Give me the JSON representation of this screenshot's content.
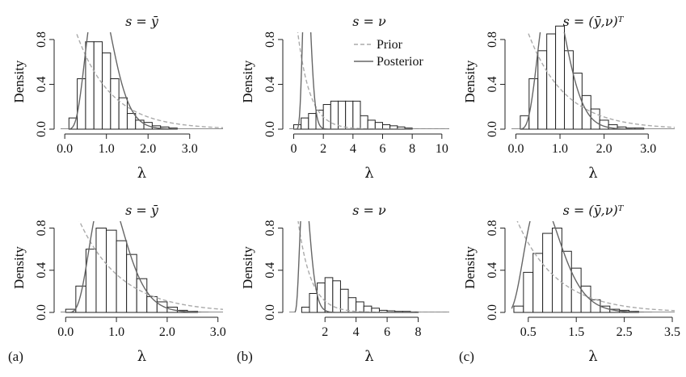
{
  "figure": {
    "panel_labels": [
      "(a)",
      "(b)",
      "(c)"
    ]
  },
  "chart_data": [
    {
      "type": "bar",
      "row": 0,
      "col": 0,
      "title": "s = ȳ",
      "xlabel": "λ",
      "ylabel": "Density",
      "xlim": [
        -0.1,
        3.8
      ],
      "ylim": [
        0,
        0.85
      ],
      "xticks": [
        0.0,
        1.0,
        2.0,
        3.0
      ],
      "xtick_labels": [
        "0.0",
        "1.0",
        "2.0",
        "3.0"
      ],
      "yticks": [
        0.0,
        0.4,
        0.8
      ],
      "ytick_labels": [
        "0.0",
        "0.4",
        "0.8"
      ],
      "bin_edges": [
        0.1,
        0.3,
        0.5,
        0.7,
        0.9,
        1.1,
        1.3,
        1.5,
        1.7,
        1.9,
        2.1,
        2.3,
        2.5,
        2.7
      ],
      "values": [
        0.1,
        0.45,
        0.78,
        0.78,
        0.68,
        0.45,
        0.28,
        0.14,
        0.08,
        0.06,
        0.03,
        0.02,
        0.01
      ],
      "series": [
        {
          "name": "Prior",
          "style": "dashed",
          "color": "#aaaaaa",
          "kind": "exponential",
          "rate": 1.2
        },
        {
          "name": "Posterior",
          "style": "solid",
          "color": "#666666",
          "kind": "gamma",
          "shape": 7.2,
          "rate": 7.8
        }
      ]
    },
    {
      "type": "bar",
      "row": 0,
      "col": 1,
      "title": "s = ν",
      "xlabel": "λ",
      "ylabel": "Density",
      "xlim": [
        -0.3,
        10.5
      ],
      "ylim": [
        0,
        0.85
      ],
      "xticks": [
        0,
        2,
        4,
        6,
        8,
        10
      ],
      "xtick_labels": [
        "0",
        "2",
        "4",
        "6",
        "8",
        "10"
      ],
      "yticks": [
        0.0,
        0.4,
        0.8
      ],
      "ytick_labels": [
        "0.0",
        "0.4",
        "0.8"
      ],
      "bin_edges": [
        0,
        0.5,
        1,
        1.5,
        2,
        2.5,
        3,
        3.5,
        4,
        4.5,
        5,
        5.5,
        6,
        6.5,
        7,
        7.5,
        8
      ],
      "values": [
        0.04,
        0.1,
        0.14,
        0.17,
        0.22,
        0.25,
        0.25,
        0.25,
        0.25,
        0.12,
        0.08,
        0.06,
        0.04,
        0.03,
        0.02,
        0.01
      ],
      "legend": {
        "position": "top-right",
        "entries": [
          "Prior",
          "Posterior"
        ]
      },
      "series": [
        {
          "name": "Prior",
          "style": "dashed",
          "color": "#aaaaaa",
          "kind": "exponential",
          "rate": 1.2
        },
        {
          "name": "Posterior",
          "style": "solid",
          "color": "#666666",
          "kind": "gamma",
          "shape": 12,
          "rate": 13
        }
      ]
    },
    {
      "type": "bar",
      "row": 0,
      "col": 2,
      "title": "s = (ȳ,ν)ᵀ",
      "xlabel": "λ",
      "ylabel": "Density",
      "xlim": [
        -0.1,
        3.6
      ],
      "ylim": [
        0,
        0.85
      ],
      "xticks": [
        0.0,
        1.0,
        2.0,
        3.0
      ],
      "xtick_labels": [
        "0.0",
        "1.0",
        "2.0",
        "3.0"
      ],
      "yticks": [
        0.0,
        0.4,
        0.8
      ],
      "ytick_labels": [
        "0.0",
        "0.4",
        "0.8"
      ],
      "bin_edges": [
        0.1,
        0.3,
        0.5,
        0.7,
        0.9,
        1.1,
        1.3,
        1.5,
        1.7,
        1.9,
        2.1,
        2.3,
        2.5,
        2.7,
        2.9
      ],
      "values": [
        0.12,
        0.45,
        0.7,
        0.85,
        0.92,
        0.7,
        0.5,
        0.3,
        0.18,
        0.08,
        0.04,
        0.02,
        0.01,
        0.01
      ],
      "series": [
        {
          "name": "Prior",
          "style": "dashed",
          "color": "#aaaaaa",
          "kind": "exponential",
          "rate": 1.2
        },
        {
          "name": "Posterior",
          "style": "solid",
          "color": "#666666",
          "kind": "gamma",
          "shape": 7.5,
          "rate": 8.2
        }
      ]
    },
    {
      "type": "bar",
      "row": 1,
      "col": 0,
      "title": "s = ȳ",
      "xlabel": "λ",
      "ylabel": "Density",
      "xlim": [
        -0.1,
        3.1
      ],
      "ylim": [
        0,
        0.85
      ],
      "xticks": [
        0.0,
        1.0,
        2.0,
        3.0
      ],
      "xtick_labels": [
        "0.0",
        "1.0",
        "2.0",
        "3.0"
      ],
      "yticks": [
        0.0,
        0.4,
        0.8
      ],
      "ytick_labels": [
        "0.0",
        "0.4",
        "0.8"
      ],
      "bin_edges": [
        0,
        0.2,
        0.4,
        0.6,
        0.8,
        1.0,
        1.2,
        1.4,
        1.6,
        1.8,
        2.0,
        2.2,
        2.4,
        2.6
      ],
      "values": [
        0.03,
        0.25,
        0.6,
        0.8,
        0.78,
        0.68,
        0.55,
        0.32,
        0.15,
        0.1,
        0.05,
        0.02,
        0.01
      ],
      "series": [
        {
          "name": "Prior",
          "style": "dashed",
          "color": "#aaaaaa",
          "kind": "exponential",
          "rate": 1.2
        },
        {
          "name": "Posterior",
          "style": "solid",
          "color": "#666666",
          "kind": "gamma",
          "shape": 6.5,
          "rate": 7.0
        }
      ]
    },
    {
      "type": "bar",
      "row": 1,
      "col": 1,
      "title": "s = ν",
      "xlabel": "λ",
      "ylabel": "Density",
      "xlim": [
        -0.3,
        10.0
      ],
      "ylim": [
        0,
        0.85
      ],
      "xticks": [
        2,
        4,
        6,
        8
      ],
      "xtick_labels": [
        "2",
        "4",
        "6",
        "8"
      ],
      "yticks": [
        0.0,
        0.4,
        0.8
      ],
      "ytick_labels": [
        "0.0",
        "0.4",
        "0.8"
      ],
      "bin_edges": [
        0.5,
        1,
        1.5,
        2,
        2.5,
        3,
        3.5,
        4,
        4.5,
        5,
        5.5,
        6,
        6.5,
        7,
        7.5,
        8
      ],
      "values": [
        0.05,
        0.18,
        0.28,
        0.33,
        0.3,
        0.22,
        0.14,
        0.1,
        0.06,
        0.04,
        0.02,
        0.015,
        0.01,
        0.01,
        0.005
      ],
      "series": [
        {
          "name": "Prior",
          "style": "dashed",
          "color": "#aaaaaa",
          "kind": "exponential",
          "rate": 1.2
        },
        {
          "name": "Posterior",
          "style": "solid",
          "color": "#666666",
          "kind": "gamma",
          "shape": 5.5,
          "rate": 6.8
        }
      ]
    },
    {
      "type": "bar",
      "row": 1,
      "col": 2,
      "title": "s = (ȳ,ν)ᵀ",
      "xlabel": "λ",
      "ylabel": "Density",
      "xlim": [
        0.15,
        3.55
      ],
      "ylim": [
        0,
        0.85
      ],
      "xticks": [
        0.5,
        1.5,
        2.5,
        3.5
      ],
      "xtick_labels": [
        "0.5",
        "1.5",
        "2.5",
        "3.5"
      ],
      "yticks": [
        0.0,
        0.4,
        0.8
      ],
      "ytick_labels": [
        "0.0",
        "0.4",
        "0.8"
      ],
      "bin_edges": [
        0.2,
        0.4,
        0.6,
        0.8,
        1.0,
        1.2,
        1.4,
        1.6,
        1.8,
        2.0,
        2.2,
        2.4,
        2.6,
        2.8
      ],
      "values": [
        0.06,
        0.38,
        0.56,
        0.75,
        0.8,
        0.58,
        0.42,
        0.25,
        0.12,
        0.06,
        0.03,
        0.02,
        0.01
      ],
      "series": [
        {
          "name": "Prior",
          "style": "dashed",
          "color": "#aaaaaa",
          "kind": "exponential",
          "rate": 1.2
        },
        {
          "name": "Posterior",
          "style": "solid",
          "color": "#666666",
          "kind": "gamma",
          "shape": 5.2,
          "rate": 5.6
        }
      ]
    }
  ]
}
